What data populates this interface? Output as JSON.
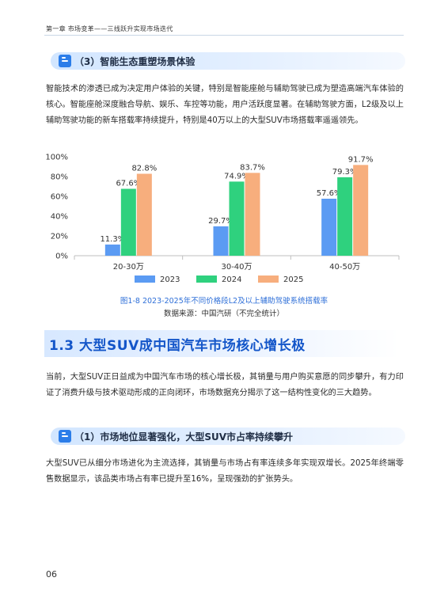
{
  "running_head": "第一章 市场变革——三线跃升实现市场迭代",
  "sub1": {
    "title": "（3）智能生态重塑场景体验"
  },
  "para1": "智能技术的渗透已成为决定用户体验的关键，特别是智能座舱与辅助驾驶已成为塑造高端汽车体验的核心。智能座舱深度融合导航、娱乐、车控等功能，用户活跃度显著。在辅助驾驶方面，L2级及以上辅助驾驶功能的新车搭载率持续提升，特别是40万以上的大型SUV市场搭载率遥遥领先。",
  "chart_data": {
    "type": "bar",
    "categories": [
      "20-30万",
      "30-40万",
      "40-50万"
    ],
    "series": [
      {
        "name": "2023",
        "values": [
          11.3,
          29.7,
          57.6
        ],
        "color": "#5b9bf3"
      },
      {
        "name": "2024",
        "values": [
          67.6,
          74.9,
          79.3
        ],
        "color": "#2fd17e"
      },
      {
        "name": "2025",
        "values": [
          82.8,
          83.7,
          91.7
        ],
        "color": "#f7ae7d"
      }
    ],
    "value_labels": [
      [
        "11.3%",
        "67.6%",
        "82.8%"
      ],
      [
        "29.7%",
        "74.9%",
        "83.7%"
      ],
      [
        "57.6%",
        "79.3%",
        "91.7%"
      ]
    ],
    "yticks": [
      "0%",
      "20%",
      "40%",
      "60%",
      "80%",
      "100%"
    ],
    "ylim": [
      0,
      100
    ],
    "legend": "bottom",
    "grid": false
  },
  "caption": {
    "title": "图1-8 2023-2025年不同价格段L2及以上辅助驾驶系统搭载率",
    "source": "数据来源：中国汽研（不完全统计）"
  },
  "section": {
    "title": "1.3 大型SUV成中国汽车市场核心增长极"
  },
  "para2": "当前，大型SUV正日益成为中国汽车市场的核心增长极，其销量与用户购买意愿的同步攀升，有力印证了消费升级与技术驱动形成的正向闭环，市场数据充分揭示了这一结构性变化的三大趋势。",
  "sub2": {
    "title": "（1）市场地位显著强化，大型SUV市占率持续攀升"
  },
  "para3": "大型SUV已从细分市场进化为主流选择，其销量与市场占有率连续多年实现双增长。2025年终端零售数据显示，该品类市场占有率已提升至16%，呈现强劲的扩张势头。",
  "page_number": "06",
  "colors": {
    "accent": "#2b7de9",
    "section_title": "#1456c9",
    "caption": "#2e6fd8"
  }
}
